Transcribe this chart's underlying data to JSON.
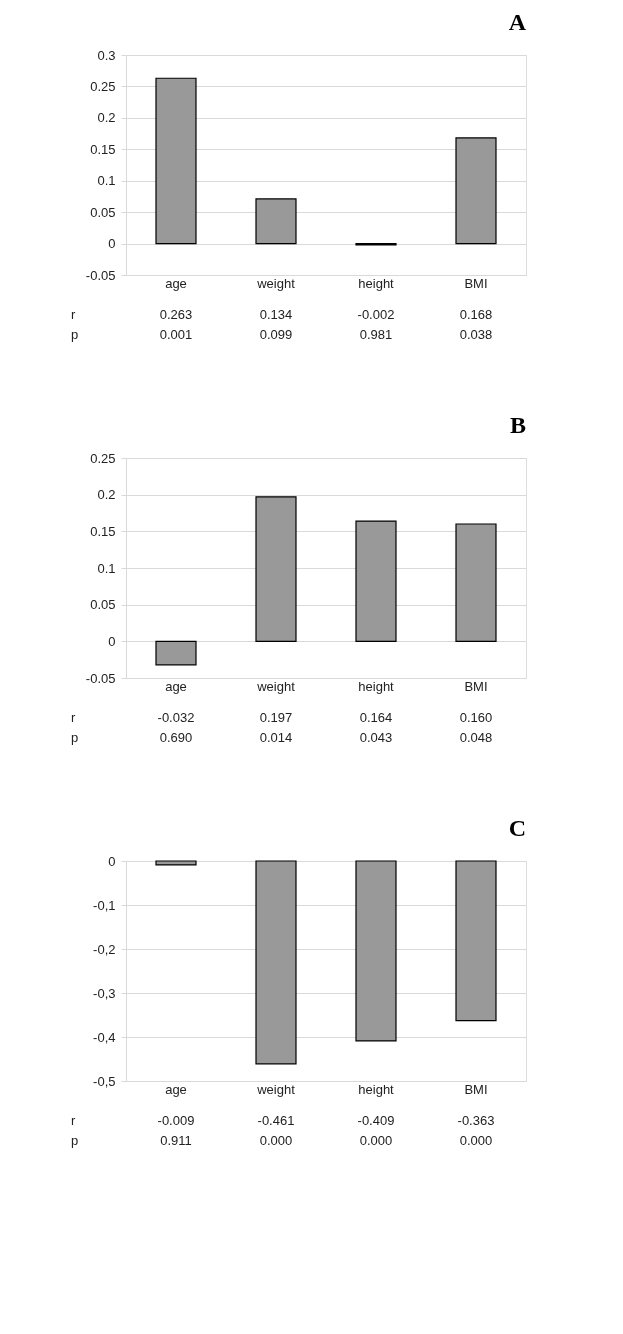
{
  "chart_data": [
    {
      "type": "bar",
      "title": "A",
      "categories": [
        "age",
        "weight",
        "height",
        "BMI"
      ],
      "values": [
        0.263,
        0.071,
        -0.002,
        0.168
      ],
      "color": "#999999",
      "ylim": [
        -0.05,
        0.3
      ],
      "yticks": [
        -0.05,
        0,
        0.05,
        0.1,
        0.15,
        0.2,
        0.25,
        0.3
      ],
      "grid": "y",
      "annotations": [
        "r",
        "p",
        "0.263",
        "0.134",
        "-0.002",
        "0.168",
        "0.001",
        "0.099",
        "0.981",
        "0.038"
      ]
    },
    {
      "type": "bar",
      "title": "B",
      "categories": [
        "age",
        "weight",
        "height",
        "BMI"
      ],
      "values": [
        -0.032,
        0.197,
        0.164,
        0.16
      ],
      "color": "#999999",
      "ylim": [
        -0.05,
        0.25
      ],
      "yticks": [
        -0.05,
        0,
        0.05,
        0.1,
        0.15,
        0.2,
        0.25
      ],
      "grid": "y",
      "annotations": [
        "r",
        "p",
        "-0.032",
        "0.197",
        "0.164",
        "0.160",
        "0.690",
        "0.014",
        "0.043",
        "0.048"
      ]
    },
    {
      "type": "bar",
      "title": "C",
      "categories": [
        "age",
        "weight",
        "height",
        "BMI"
      ],
      "values": [
        -0.009,
        -0.461,
        -0.409,
        -0.363
      ],
      "color": "#999999",
      "ylim": [
        -0.5,
        0
      ],
      "yticks": [
        {
          "value": -0.5,
          "label": "-0,5"
        },
        {
          "value": -0.4,
          "label": "-0,4"
        },
        {
          "value": -0.3,
          "label": "-0,3"
        },
        {
          "value": -0.2,
          "label": "-0,2"
        },
        {
          "value": -0.1,
          "label": "-0,1"
        },
        0
      ],
      "grid": "y",
      "annotations": [
        "r",
        "p",
        "-0.009",
        "-0.461",
        "-0.409",
        "-0.363",
        "0.911",
        "0.000",
        "0.000",
        "0.000"
      ]
    }
  ]
}
